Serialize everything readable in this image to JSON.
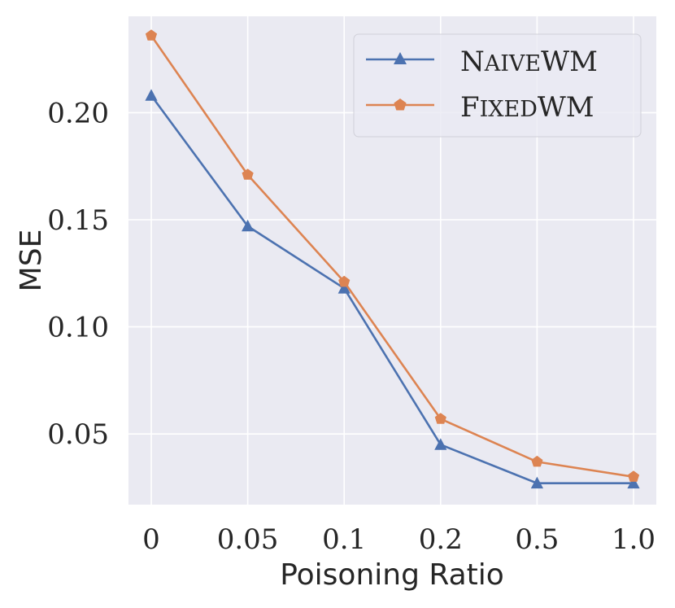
{
  "chart_data": {
    "type": "line",
    "title": "",
    "xlabel": "Poisoning Ratio",
    "ylabel": "MSE",
    "categories": [
      "0",
      "0.05",
      "0.1",
      "0.2",
      "0.5",
      "1.0"
    ],
    "ylim": [
      0.017,
      0.245
    ],
    "yticks": [
      0.05,
      0.1,
      0.15,
      0.2
    ],
    "ytick_labels": [
      "0.05",
      "0.10",
      "0.15",
      "0.20"
    ],
    "grid": true,
    "legend_position": "top-right",
    "series": [
      {
        "name": "NaiveWM",
        "legend_label": {
          "first": "N",
          "rest": "AIVE",
          "suffix": "WM"
        },
        "marker": "triangle",
        "color": "#4c72b0",
        "values": [
          0.208,
          0.147,
          0.118,
          0.045,
          0.027,
          0.027
        ]
      },
      {
        "name": "FixedWM",
        "legend_label": {
          "first": "F",
          "rest": "IXED",
          "suffix": "WM"
        },
        "marker": "pentagon",
        "color": "#dd8452",
        "values": [
          0.236,
          0.171,
          0.121,
          0.057,
          0.037,
          0.03
        ]
      }
    ],
    "colors": {
      "background": "#eaeaf2",
      "grid": "#ffffff",
      "text": "#262626"
    }
  }
}
